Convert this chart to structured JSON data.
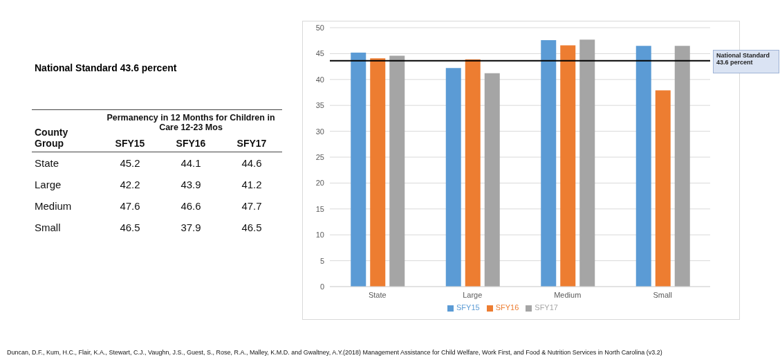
{
  "chart_data": [
    {
      "type": "other",
      "title": "National Standard 43.6 percent",
      "subtitle": "Permanency in 12 Months for Children in Care 12-23 Mos",
      "xlabel": "County Group",
      "categories": [
        "State",
        "Large",
        "Medium",
        "Small"
      ],
      "series": [
        {
          "name": "SFY15",
          "values": [
            45.2,
            42.2,
            47.6,
            46.5
          ]
        },
        {
          "name": "SFY16",
          "values": [
            44.1,
            43.9,
            46.6,
            37.9
          ]
        },
        {
          "name": "SFY17",
          "values": [
            44.6,
            41.2,
            47.7,
            46.5
          ]
        }
      ],
      "data_labels": true
    },
    {
      "type": "bar",
      "categories": [
        "State",
        "Large",
        "Medium",
        "Small"
      ],
      "series": [
        {
          "name": "SFY15",
          "color": "#5b9bd5",
          "values": [
            45.2,
            42.2,
            47.6,
            46.5
          ]
        },
        {
          "name": "SFY16",
          "color": "#ed7d31",
          "values": [
            44.1,
            43.9,
            46.6,
            37.9
          ]
        },
        {
          "name": "SFY17",
          "color": "#a5a5a5",
          "values": [
            44.6,
            41.2,
            47.7,
            46.5
          ]
        }
      ],
      "ylim": [
        0,
        50
      ],
      "yticks": [
        0,
        5,
        10,
        15,
        20,
        25,
        30,
        35,
        40,
        45,
        50
      ],
      "grid": "y",
      "legend": "bottom",
      "ref_lines": [
        {
          "axis": "y",
          "value": 43.6,
          "label": "National Standard 43.6 percent",
          "color": "#000000"
        }
      ],
      "annotations": [
        "Duncan, D.F., Kum, H.C., Flair, K.A., Stewart, C.J., Vaughn, J.S., Guest, S., Rose, R.A., Malley, K.M.D. and Gwaltney, A.Y.(2018) Management Assistance for Child Welfare, Work First, and Food & Nutrition Services in North Carolina (v3.2)"
      ]
    }
  ]
}
